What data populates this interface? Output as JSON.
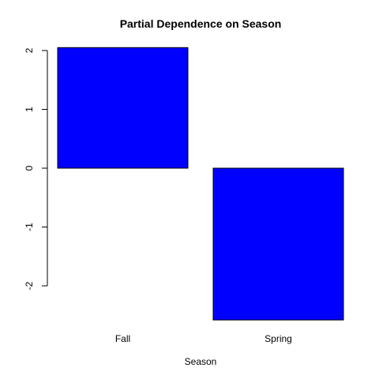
{
  "chart_data": {
    "type": "bar",
    "title": "Partial Dependence on Season",
    "xlabel": "Season",
    "ylabel": "",
    "categories": [
      "Fall",
      "Spring"
    ],
    "values": [
      2.05,
      -2.58
    ],
    "yticks": [
      -2,
      -1,
      0,
      1,
      2
    ],
    "ylim": [
      -2.6,
      2.1
    ],
    "bar_color": "#0000ff",
    "grid": false,
    "legend": "none"
  }
}
